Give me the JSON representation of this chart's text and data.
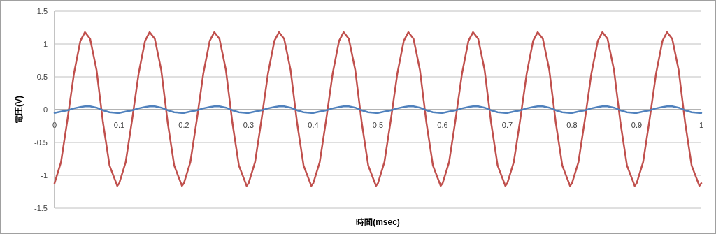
{
  "chart_data": {
    "type": "line",
    "xlabel": "時間(msec)",
    "ylabel": "電圧(V)",
    "x": [
      0,
      0.01,
      0.02,
      0.03,
      0.04,
      0.047,
      0.055,
      0.065,
      0.075,
      0.085,
      0.097,
      0.1,
      0.11,
      0.12,
      0.13,
      0.14,
      0.147,
      0.155,
      0.165,
      0.175,
      0.185,
      0.197,
      0.2,
      0.21,
      0.22,
      0.23,
      0.24,
      0.247,
      0.255,
      0.265,
      0.275,
      0.285,
      0.297,
      0.3,
      0.31,
      0.32,
      0.33,
      0.34,
      0.347,
      0.355,
      0.365,
      0.375,
      0.385,
      0.397,
      0.4,
      0.41,
      0.42,
      0.43,
      0.44,
      0.447,
      0.455,
      0.465,
      0.475,
      0.485,
      0.497,
      0.5,
      0.51,
      0.52,
      0.53,
      0.54,
      0.547,
      0.555,
      0.565,
      0.575,
      0.585,
      0.597,
      0.6,
      0.61,
      0.62,
      0.63,
      0.64,
      0.647,
      0.655,
      0.665,
      0.675,
      0.685,
      0.697,
      0.7,
      0.71,
      0.72,
      0.73,
      0.74,
      0.747,
      0.755,
      0.765,
      0.775,
      0.785,
      0.797,
      0.8,
      0.81,
      0.82,
      0.83,
      0.84,
      0.847,
      0.855,
      0.865,
      0.875,
      0.885,
      0.897,
      0.9,
      0.91,
      0.92,
      0.93,
      0.94,
      0.947,
      0.955,
      0.965,
      0.975,
      0.985,
      0.997,
      1
    ],
    "series": [
      {
        "color": "#c0504d",
        "values": [
          -1.12,
          -0.8,
          -0.15,
          0.55,
          1.05,
          1.18,
          1.08,
          0.6,
          -0.2,
          -0.85,
          -1.16,
          -1.12,
          -0.8,
          -0.15,
          0.55,
          1.05,
          1.18,
          1.08,
          0.6,
          -0.2,
          -0.85,
          -1.16,
          -1.12,
          -0.8,
          -0.15,
          0.55,
          1.05,
          1.18,
          1.08,
          0.6,
          -0.2,
          -0.85,
          -1.16,
          -1.12,
          -0.8,
          -0.15,
          0.55,
          1.05,
          1.18,
          1.08,
          0.6,
          -0.2,
          -0.85,
          -1.16,
          -1.12,
          -0.8,
          -0.15,
          0.55,
          1.05,
          1.18,
          1.08,
          0.6,
          -0.2,
          -0.85,
          -1.16,
          -1.12,
          -0.8,
          -0.15,
          0.55,
          1.05,
          1.18,
          1.08,
          0.6,
          -0.2,
          -0.85,
          -1.16,
          -1.12,
          -0.8,
          -0.15,
          0.55,
          1.05,
          1.18,
          1.08,
          0.6,
          -0.2,
          -0.85,
          -1.16,
          -1.12,
          -0.8,
          -0.15,
          0.55,
          1.05,
          1.18,
          1.08,
          0.6,
          -0.2,
          -0.85,
          -1.16,
          -1.12,
          -0.8,
          -0.15,
          0.55,
          1.05,
          1.18,
          1.08,
          0.6,
          -0.2,
          -0.85,
          -1.16,
          -1.12,
          -0.8,
          -0.15,
          0.55,
          1.05,
          1.18,
          1.08,
          0.6,
          -0.2,
          -0.85,
          -1.16,
          -1.12
        ]
      },
      {
        "color": "#4f81bd",
        "values": [
          -0.05,
          -0.03,
          -0.01,
          0.02,
          0.04,
          0.05,
          0.05,
          0.03,
          -0.01,
          -0.04,
          -0.05,
          -0.05,
          -0.03,
          -0.01,
          0.02,
          0.04,
          0.05,
          0.05,
          0.03,
          -0.01,
          -0.04,
          -0.05,
          -0.05,
          -0.03,
          -0.01,
          0.02,
          0.04,
          0.05,
          0.05,
          0.03,
          -0.01,
          -0.04,
          -0.05,
          -0.05,
          -0.03,
          -0.01,
          0.02,
          0.04,
          0.05,
          0.05,
          0.03,
          -0.01,
          -0.04,
          -0.05,
          -0.05,
          -0.03,
          -0.01,
          0.02,
          0.04,
          0.05,
          0.05,
          0.03,
          -0.01,
          -0.04,
          -0.05,
          -0.05,
          -0.03,
          -0.01,
          0.02,
          0.04,
          0.05,
          0.05,
          0.03,
          -0.01,
          -0.04,
          -0.05,
          -0.05,
          -0.03,
          -0.01,
          0.02,
          0.04,
          0.05,
          0.05,
          0.03,
          -0.01,
          -0.04,
          -0.05,
          -0.05,
          -0.03,
          -0.01,
          0.02,
          0.04,
          0.05,
          0.05,
          0.03,
          -0.01,
          -0.04,
          -0.05,
          -0.05,
          -0.03,
          -0.01,
          0.02,
          0.04,
          0.05,
          0.05,
          0.03,
          -0.01,
          -0.04,
          -0.05,
          -0.05,
          -0.03,
          -0.01,
          0.02,
          0.04,
          0.05,
          0.05,
          0.03,
          -0.01,
          -0.04,
          -0.05,
          -0.05
        ]
      }
    ],
    "xlim": [
      0,
      1
    ],
    "xticks": [
      0,
      0.1,
      0.2,
      0.3,
      0.4,
      0.5,
      0.6,
      0.7,
      0.8,
      0.9,
      1
    ],
    "ylim": [
      -1.5,
      1.5
    ],
    "yticks": [
      -1.5,
      -1,
      -0.5,
      0,
      0.5,
      1,
      1.5
    ],
    "grid": "y",
    "marker": "none",
    "line_style": "solid"
  }
}
